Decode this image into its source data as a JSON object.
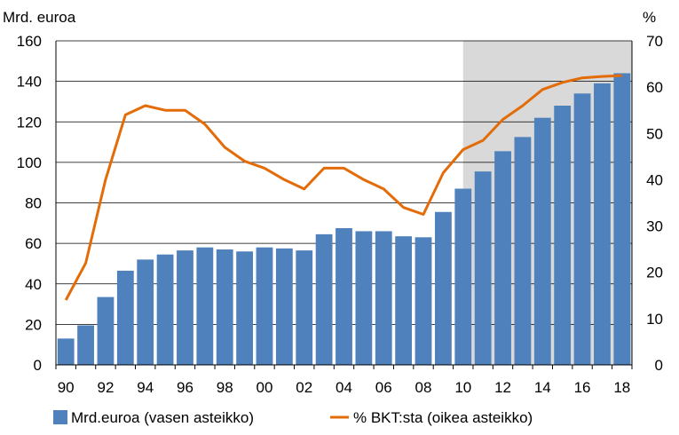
{
  "chart_data": {
    "type": "bar",
    "y_left_label": "Mrd. euroa",
    "y_right_label": "%",
    "categories": [
      "90",
      "91",
      "92",
      "93",
      "94",
      "95",
      "96",
      "97",
      "98",
      "99",
      "00",
      "01",
      "02",
      "03",
      "04",
      "05",
      "06",
      "07",
      "08",
      "09",
      "10",
      "11",
      "12",
      "13",
      "14",
      "15",
      "16",
      "17",
      "18"
    ],
    "x_tick_labels": [
      "90",
      "92",
      "94",
      "96",
      "98",
      "00",
      "02",
      "04",
      "06",
      "08",
      "10",
      "12",
      "14",
      "16",
      "18"
    ],
    "ylim_left": [
      0,
      160
    ],
    "yticks_left": [
      "0",
      "20",
      "40",
      "60",
      "80",
      "100",
      "120",
      "140",
      "160"
    ],
    "ylim_right": [
      0,
      70
    ],
    "yticks_right": [
      "0",
      "10",
      "20",
      "30",
      "40",
      "50",
      "60",
      "70"
    ],
    "grid": true,
    "forecast_shading_from": "11",
    "series": [
      {
        "name": "Mrd.euroa (vasen asteikko)",
        "type": "bar",
        "axis": "left",
        "color": "#4f81bd",
        "values": [
          13,
          19.5,
          33.5,
          46.5,
          52,
          54.5,
          56.5,
          58,
          57,
          56,
          58,
          57.5,
          56.5,
          64.5,
          67.5,
          66,
          66,
          63.5,
          63,
          75.5,
          87,
          95.5,
          105.5,
          112.5,
          122,
          128,
          134,
          139,
          144
        ]
      },
      {
        "name": "% BKT:sta (oikea asteikko)",
        "type": "line",
        "axis": "right",
        "color": "#e36c09",
        "values": [
          14,
          22,
          40,
          54,
          56,
          55,
          55,
          52,
          47,
          44,
          42.5,
          40,
          38,
          42.5,
          42.5,
          40,
          38,
          34,
          32.5,
          41.5,
          46.5,
          48.5,
          53,
          56,
          59.5,
          61,
          62,
          62.3,
          62.5
        ]
      }
    ],
    "legend_position": "bottom"
  }
}
